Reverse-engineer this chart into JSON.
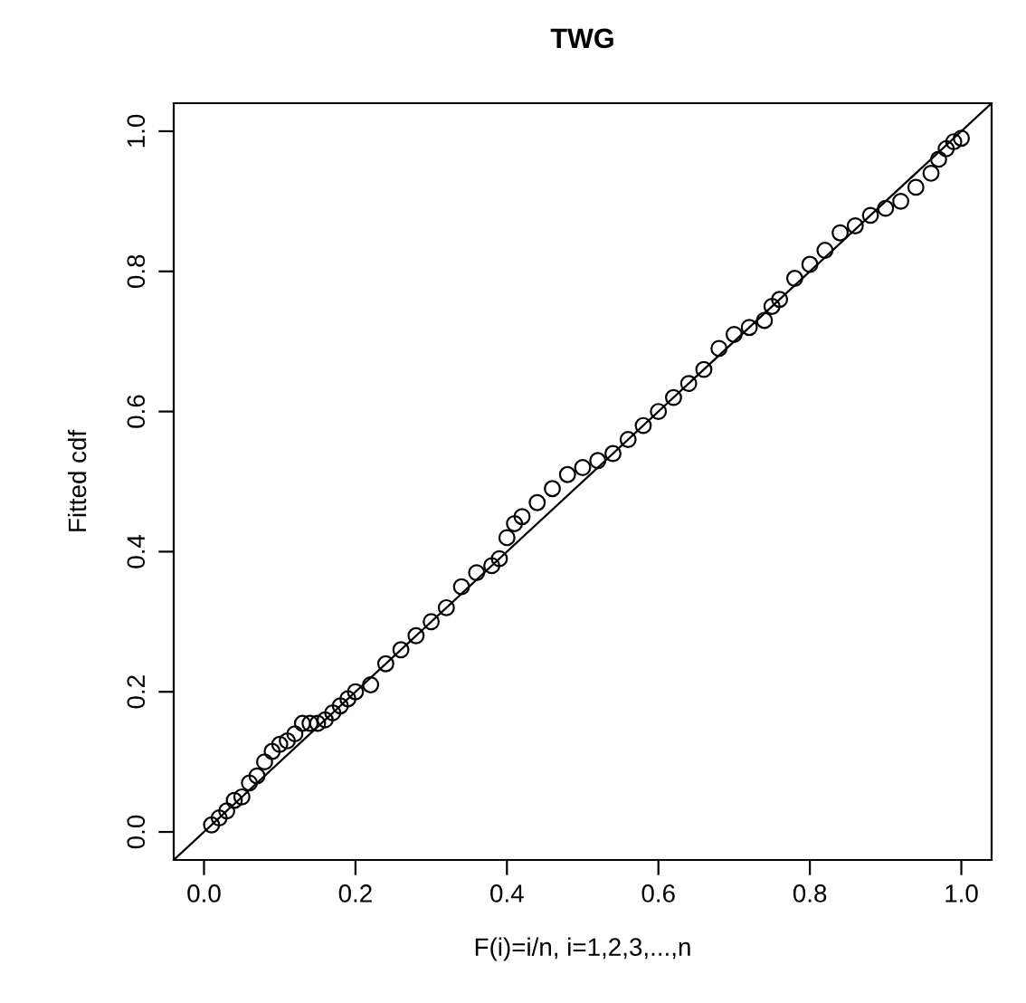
{
  "chart_data": {
    "type": "scatter",
    "title": "TWG",
    "xlabel": "F(i)=i/n, i=1,2,3,...,n",
    "ylabel": "Fitted cdf",
    "xlim": [
      -0.04,
      1.04
    ],
    "ylim": [
      -0.04,
      1.04
    ],
    "xticks": [
      {
        "value": 0,
        "label": "0.0"
      },
      0.2,
      0.4,
      0.6,
      0.8,
      {
        "value": 1,
        "label": "1.0"
      }
    ],
    "yticks": [
      {
        "value": 0,
        "label": "0.0"
      },
      0.2,
      0.4,
      0.6,
      0.8,
      {
        "value": 1,
        "label": "1.0"
      }
    ],
    "marker": "circle",
    "grid": false,
    "legend": false,
    "series": [
      {
        "color": "#000000",
        "x": [
          0.01,
          0.02,
          0.03,
          0.04,
          0.05,
          0.06,
          0.07,
          0.08,
          0.09,
          0.1,
          0.11,
          0.12,
          0.13,
          0.14,
          0.15,
          0.16,
          0.17,
          0.18,
          0.19,
          0.2,
          0.22,
          0.24,
          0.26,
          0.28,
          0.3,
          0.32,
          0.34,
          0.36,
          0.38,
          0.39,
          0.4,
          0.41,
          0.42,
          0.44,
          0.46,
          0.48,
          0.5,
          0.52,
          0.54,
          0.56,
          0.58,
          0.6,
          0.62,
          0.64,
          0.66,
          0.68,
          0.7,
          0.72,
          0.74,
          0.75,
          0.76,
          0.78,
          0.8,
          0.82,
          0.84,
          0.86,
          0.88,
          0.9,
          0.92,
          0.94,
          0.96,
          0.97,
          0.98,
          0.99,
          1.0
        ],
        "values": [
          0.01,
          0.02,
          0.03,
          0.045,
          0.05,
          0.07,
          0.08,
          0.1,
          0.115,
          0.125,
          0.13,
          0.14,
          0.155,
          0.155,
          0.155,
          0.16,
          0.17,
          0.18,
          0.19,
          0.2,
          0.21,
          0.24,
          0.26,
          0.28,
          0.3,
          0.32,
          0.35,
          0.37,
          0.38,
          0.39,
          0.42,
          0.44,
          0.45,
          0.47,
          0.49,
          0.51,
          0.52,
          0.53,
          0.54,
          0.56,
          0.58,
          0.6,
          0.62,
          0.64,
          0.66,
          0.69,
          0.71,
          0.72,
          0.73,
          0.75,
          0.76,
          0.79,
          0.81,
          0.83,
          0.855,
          0.865,
          0.88,
          0.89,
          0.9,
          0.92,
          0.94,
          0.96,
          0.975,
          0.985,
          0.99
        ]
      },
      {
        "type": "line",
        "color": "#000000",
        "x": [
          -0.04,
          1.04
        ],
        "values": [
          -0.04,
          1.04
        ],
        "marker": "none",
        "line_style": "solid"
      }
    ]
  }
}
